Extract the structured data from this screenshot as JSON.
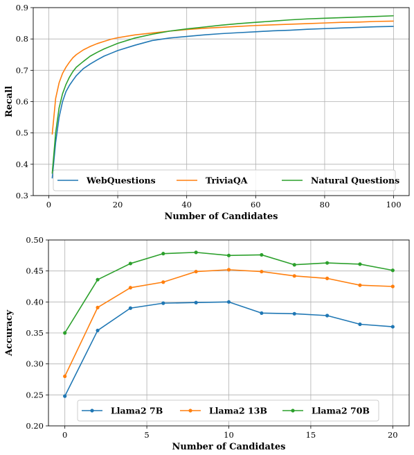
{
  "chart_data": [
    {
      "type": "line",
      "title": "",
      "xlabel": "Number of Candidates",
      "ylabel": "Recall",
      "xlim": [
        -4.5,
        104.5
      ],
      "ylim": [
        0.3,
        0.9
      ],
      "xticks": [
        "0",
        "20",
        "40",
        "60",
        "80",
        "100"
      ],
      "yticks": [
        "0.3",
        "0.4",
        "0.5",
        "0.6",
        "0.7",
        "0.8",
        "0.9"
      ],
      "grid": true,
      "legend_position": "lower-center",
      "legend_columns": 3,
      "markers": false,
      "series": [
        {
          "name": "WebQuestions",
          "color": "#1f77b4",
          "x": [
            1,
            2,
            3,
            4,
            5,
            6,
            7,
            8,
            10,
            12,
            14,
            16,
            18,
            20,
            25,
            30,
            35,
            40,
            45,
            50,
            55,
            60,
            65,
            70,
            75,
            80,
            85,
            90,
            95,
            100
          ],
          "y": [
            0.355,
            0.47,
            0.55,
            0.6,
            0.632,
            0.652,
            0.668,
            0.683,
            0.705,
            0.72,
            0.733,
            0.745,
            0.754,
            0.763,
            0.78,
            0.795,
            0.803,
            0.808,
            0.813,
            0.817,
            0.82,
            0.823,
            0.826,
            0.828,
            0.831,
            0.833,
            0.835,
            0.837,
            0.839,
            0.84
          ]
        },
        {
          "name": "TriviaQA",
          "color": "#ff7f0e",
          "x": [
            1,
            2,
            3,
            4,
            5,
            6,
            7,
            8,
            10,
            12,
            14,
            16,
            18,
            20,
            25,
            30,
            35,
            40,
            45,
            50,
            55,
            60,
            65,
            70,
            75,
            80,
            85,
            90,
            95,
            100
          ],
          "y": [
            0.495,
            0.61,
            0.66,
            0.69,
            0.71,
            0.726,
            0.74,
            0.75,
            0.765,
            0.776,
            0.785,
            0.792,
            0.799,
            0.804,
            0.813,
            0.819,
            0.825,
            0.83,
            0.834,
            0.837,
            0.84,
            0.843,
            0.845,
            0.847,
            0.849,
            0.851,
            0.853,
            0.854,
            0.856,
            0.857
          ]
        },
        {
          "name": "Natural Questions",
          "color": "#2ca02c",
          "x": [
            1,
            2,
            3,
            4,
            5,
            6,
            7,
            8,
            10,
            12,
            14,
            16,
            18,
            20,
            25,
            30,
            35,
            40,
            45,
            50,
            55,
            60,
            65,
            70,
            75,
            80,
            85,
            90,
            95,
            100
          ],
          "y": [
            0.37,
            0.5,
            0.58,
            0.625,
            0.655,
            0.678,
            0.696,
            0.71,
            0.728,
            0.745,
            0.757,
            0.768,
            0.777,
            0.786,
            0.803,
            0.815,
            0.825,
            0.832,
            0.838,
            0.844,
            0.849,
            0.853,
            0.857,
            0.861,
            0.864,
            0.866,
            0.868,
            0.87,
            0.872,
            0.874
          ]
        }
      ]
    },
    {
      "type": "line",
      "title": "",
      "xlabel": "Number of Candidates",
      "ylabel": "Accuracy",
      "xlim": [
        -1,
        21
      ],
      "ylim": [
        0.2,
        0.5
      ],
      "xticks": [
        "0",
        "5",
        "10",
        "15",
        "20"
      ],
      "yticks": [
        "0.20",
        "0.25",
        "0.30",
        "0.35",
        "0.40",
        "0.45",
        "0.50"
      ],
      "grid": true,
      "legend_position": "lower-center",
      "legend_columns": 3,
      "markers": true,
      "series": [
        {
          "name": "Llama2 7B",
          "color": "#1f77b4",
          "x": [
            0,
            2,
            4,
            6,
            8,
            10,
            12,
            14,
            16,
            18,
            20
          ],
          "y": [
            0.248,
            0.354,
            0.39,
            0.398,
            0.399,
            0.4,
            0.382,
            0.381,
            0.378,
            0.364,
            0.36
          ]
        },
        {
          "name": "Llama2 13B",
          "color": "#ff7f0e",
          "x": [
            0,
            2,
            4,
            6,
            8,
            10,
            12,
            14,
            16,
            18,
            20
          ],
          "y": [
            0.28,
            0.391,
            0.423,
            0.432,
            0.449,
            0.452,
            0.449,
            0.442,
            0.438,
            0.427,
            0.425
          ]
        },
        {
          "name": "Llama2 70B",
          "color": "#2ca02c",
          "x": [
            0,
            2,
            4,
            6,
            8,
            10,
            12,
            14,
            16,
            18,
            20
          ],
          "y": [
            0.35,
            0.436,
            0.462,
            0.478,
            0.48,
            0.475,
            0.476,
            0.46,
            0.463,
            0.461,
            0.451
          ]
        }
      ]
    }
  ]
}
